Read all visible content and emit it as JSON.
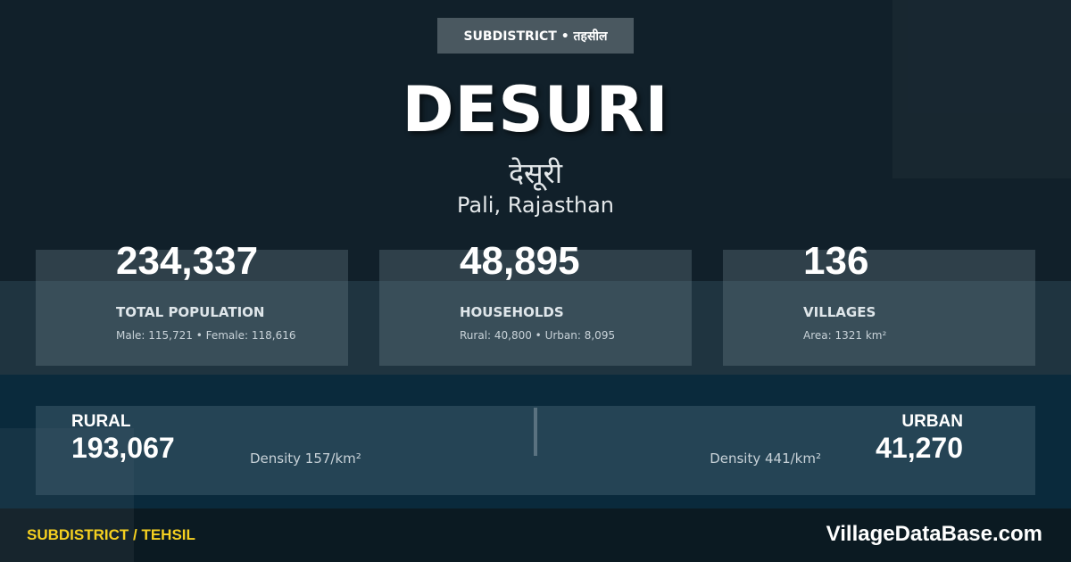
{
  "badge": "SUBDISTRICT • तहसील",
  "title": "DESURI",
  "title_hindi": "देसूरी",
  "location": "Pali, Rajasthan",
  "stats": [
    {
      "value": "234,337",
      "label": "TOTAL POPULATION",
      "detail": "Male: 115,721 • Female: 118,616"
    },
    {
      "value": "48,895",
      "label": "HOUSEHOLDS",
      "detail": "Rural: 40,800 • Urban: 8,095"
    },
    {
      "value": "136",
      "label": "VILLAGES",
      "detail": "Area: 1321 km²"
    }
  ],
  "rural": {
    "label": "RURAL",
    "value": "193,067",
    "density": "Density 157/km²"
  },
  "urban": {
    "label": "URBAN",
    "value": "41,270",
    "density": "Density 441/km²"
  },
  "footer": {
    "tag": "SUBDISTRICT / TEHSIL",
    "brand": "VillageDataBase.com"
  },
  "colors": {
    "accent": "#f5d020",
    "background": "#11202a"
  }
}
